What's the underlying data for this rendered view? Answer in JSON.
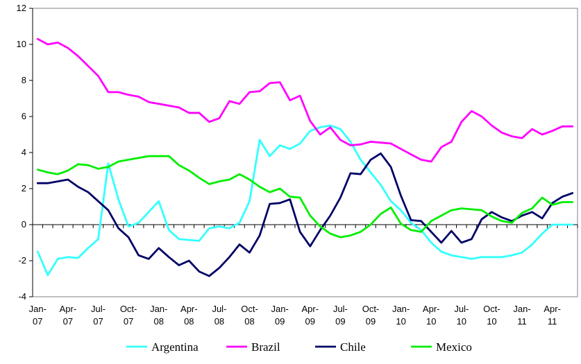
{
  "chart_data": {
    "type": "line",
    "title": "",
    "xlabel": "",
    "ylabel": "",
    "ylim": [
      -4,
      12
    ],
    "yticks": [
      "-4",
      "-2",
      "0",
      "2",
      "4",
      "6",
      "8",
      "10",
      "12"
    ],
    "grid": false,
    "legend_position": "bottom",
    "x": [
      "Jan-07",
      "Feb-07",
      "Mar-07",
      "Apr-07",
      "May-07",
      "Jun-07",
      "Jul-07",
      "Aug-07",
      "Sep-07",
      "Oct-07",
      "Nov-07",
      "Dec-07",
      "Jan-08",
      "Feb-08",
      "Mar-08",
      "Apr-08",
      "May-08",
      "Jun-08",
      "Jul-08",
      "Aug-08",
      "Sep-08",
      "Oct-08",
      "Nov-08",
      "Dec-08",
      "Jan-09",
      "Feb-09",
      "Mar-09",
      "Apr-09",
      "May-09",
      "Jun-09",
      "Jul-09",
      "Aug-09",
      "Sep-09",
      "Oct-09",
      "Nov-09",
      "Dec-09",
      "Jan-10",
      "Feb-10",
      "Mar-10",
      "Apr-10",
      "May-10",
      "Jun-10",
      "Jul-10",
      "Aug-10",
      "Sep-10",
      "Oct-10",
      "Nov-10",
      "Dec-10",
      "Jan-11",
      "Feb-11",
      "Mar-11",
      "Apr-11",
      "May-11",
      "Jun-11"
    ],
    "x_tick_labels": [
      {
        "line1": "Jan-",
        "line2": "07"
      },
      {
        "line1": "Apr-",
        "line2": "07"
      },
      {
        "line1": "Jul-",
        "line2": "07"
      },
      {
        "line1": "Oct-",
        "line2": "07"
      },
      {
        "line1": "Jan-",
        "line2": "08"
      },
      {
        "line1": "Apr-",
        "line2": "08"
      },
      {
        "line1": "Jul-",
        "line2": "08"
      },
      {
        "line1": "Oct-",
        "line2": "08"
      },
      {
        "line1": "Jan-",
        "line2": "09"
      },
      {
        "line1": "Apr-",
        "line2": "09"
      },
      {
        "line1": "Jul-",
        "line2": "09"
      },
      {
        "line1": "Oct-",
        "line2": "09"
      },
      {
        "line1": "Jan-",
        "line2": "10"
      },
      {
        "line1": "Apr-",
        "line2": "10"
      },
      {
        "line1": "Jul-",
        "line2": "10"
      },
      {
        "line1": "Oct-",
        "line2": "10"
      },
      {
        "line1": "Jan-",
        "line2": "11"
      },
      {
        "line1": "Apr-",
        "line2": "11"
      }
    ],
    "series": [
      {
        "name": "Argentina",
        "color": "#33ffff",
        "values": [
          -1.5,
          -2.8,
          -1.9,
          -1.8,
          -1.85,
          -1.3,
          -0.8,
          3.4,
          1.4,
          -0.1,
          0.1,
          0.7,
          1.3,
          -0.3,
          -0.8,
          -0.85,
          -0.9,
          -0.2,
          -0.1,
          -0.2,
          0.1,
          1.3,
          4.7,
          3.8,
          4.4,
          4.2,
          4.5,
          5.2,
          5.4,
          5.5,
          5.3,
          4.6,
          3.6,
          2.9,
          2.2,
          1.3,
          0.8,
          0.1,
          -0.3,
          -1.0,
          -1.5,
          -1.7,
          -1.8,
          -1.9,
          -1.8,
          -1.8,
          -1.8,
          -1.7,
          -1.55,
          -1.1,
          -0.5,
          0.0,
          0.0,
          0.0
        ]
      },
      {
        "name": "Brazil",
        "color": "#ff00ff",
        "values": [
          10.3,
          10.0,
          10.1,
          9.8,
          9.35,
          8.8,
          8.25,
          7.35,
          7.35,
          7.2,
          7.1,
          6.8,
          6.7,
          6.6,
          6.5,
          6.2,
          6.2,
          5.7,
          5.9,
          6.85,
          6.7,
          7.35,
          7.4,
          7.85,
          7.9,
          6.9,
          7.15,
          5.75,
          5.0,
          5.4,
          4.7,
          4.4,
          4.45,
          4.6,
          4.55,
          4.5,
          4.2,
          3.9,
          3.6,
          3.5,
          4.3,
          4.6,
          5.7,
          6.3,
          6.0,
          5.5,
          5.1,
          4.9,
          4.8,
          5.3,
          5.0,
          5.2,
          5.45,
          5.45
        ]
      },
      {
        "name": "Chile",
        "color": "#000066",
        "values": [
          2.3,
          2.3,
          2.4,
          2.5,
          2.1,
          1.8,
          1.3,
          0.8,
          -0.2,
          -0.7,
          -1.7,
          -1.9,
          -1.3,
          -1.8,
          -2.25,
          -2.0,
          -2.6,
          -2.85,
          -2.4,
          -1.8,
          -1.1,
          -1.55,
          -0.6,
          1.15,
          1.2,
          1.4,
          -0.4,
          -1.2,
          -0.3,
          0.5,
          1.5,
          2.85,
          2.8,
          3.6,
          3.95,
          3.2,
          1.6,
          0.25,
          0.2,
          -0.4,
          -1.0,
          -0.35,
          -1.0,
          -0.8,
          0.3,
          0.7,
          0.4,
          0.2,
          0.5,
          0.7,
          0.35,
          1.2,
          1.55,
          1.75
        ]
      },
      {
        "name": "Mexico",
        "color": "#00ee00",
        "values": [
          3.05,
          2.9,
          2.8,
          3.0,
          3.35,
          3.3,
          3.1,
          3.2,
          3.5,
          3.6,
          3.7,
          3.8,
          3.8,
          3.8,
          3.3,
          3.0,
          2.6,
          2.25,
          2.4,
          2.5,
          2.8,
          2.5,
          2.1,
          1.8,
          2.0,
          1.55,
          1.5,
          0.5,
          -0.1,
          -0.5,
          -0.7,
          -0.6,
          -0.4,
          0.0,
          0.6,
          0.95,
          0.05,
          -0.3,
          -0.4,
          0.2,
          0.5,
          0.8,
          0.9,
          0.85,
          0.8,
          0.45,
          0.2,
          0.1,
          0.65,
          0.9,
          1.5,
          1.1,
          1.25,
          1.25
        ]
      }
    ]
  }
}
